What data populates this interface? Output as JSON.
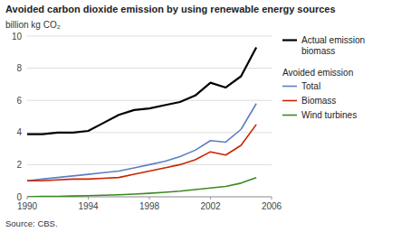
{
  "chart_data": {
    "type": "line",
    "title": "Avoided carbon dioxide emission by using renewable energy sources",
    "y_label": "billion kg CO₂",
    "source": "Source: CBS.",
    "x": [
      1990,
      1991,
      1992,
      1993,
      1994,
      1995,
      1996,
      1997,
      1998,
      1999,
      2000,
      2001,
      2002,
      2003,
      2004,
      2005
    ],
    "series": [
      {
        "name": "Actual emission\nbiomass",
        "color": "#000000",
        "values": [
          3.9,
          3.9,
          4.0,
          4.0,
          4.1,
          4.6,
          5.1,
          5.4,
          5.5,
          5.7,
          5.9,
          6.3,
          7.1,
          6.8,
          7.5,
          9.3
        ]
      },
      {
        "name": "Total",
        "group": "Avoided emission",
        "color": "#5b7fc4",
        "values": [
          1.0,
          1.1,
          1.2,
          1.3,
          1.4,
          1.5,
          1.6,
          1.8,
          2.0,
          2.2,
          2.5,
          2.9,
          3.5,
          3.4,
          4.2,
          5.8
        ]
      },
      {
        "name": "Biomass",
        "group": "Avoided emission",
        "color": "#cc2200",
        "values": [
          1.0,
          1.0,
          1.05,
          1.1,
          1.1,
          1.15,
          1.2,
          1.4,
          1.6,
          1.8,
          2.0,
          2.3,
          2.8,
          2.6,
          3.2,
          4.5
        ]
      },
      {
        "name": "Wind turbines",
        "group": "Avoided emission",
        "color": "#3a8a20",
        "values": [
          0.0,
          0.02,
          0.03,
          0.05,
          0.07,
          0.1,
          0.13,
          0.17,
          0.22,
          0.28,
          0.35,
          0.45,
          0.55,
          0.65,
          0.85,
          1.2
        ]
      }
    ],
    "xlim": [
      1990,
      2006
    ],
    "xticks": [
      1990,
      1994,
      1998,
      2002,
      2006
    ],
    "ylim": [
      0,
      10
    ],
    "yticks": [
      0,
      2,
      4,
      6,
      8,
      10
    ],
    "grid": true
  }
}
